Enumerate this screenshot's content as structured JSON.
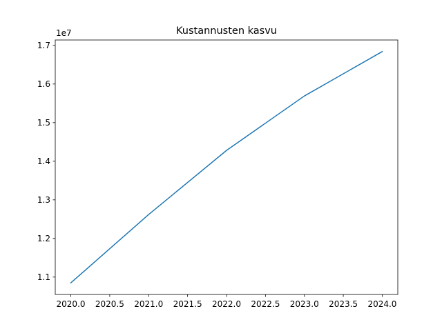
{
  "chart_data": {
    "type": "line",
    "title": "Kustannusten kasvu",
    "xlabel": "",
    "ylabel": "",
    "y_offset_label": "1e7",
    "x": [
      2020,
      2021,
      2022,
      2023,
      2024
    ],
    "series": [
      {
        "values": [
          10850000,
          12620000,
          14280000,
          15690000,
          16840000
        ],
        "color": "#1f77b4"
      }
    ],
    "xlim": [
      2019.8,
      2024.2
    ],
    "ylim": [
      10550000,
      17140000
    ],
    "x_ticks": [
      {
        "value": 2020.0,
        "label": "2020.0"
      },
      {
        "value": 2020.5,
        "label": "2020.5"
      },
      {
        "value": 2021.0,
        "label": "2021.0"
      },
      {
        "value": 2021.5,
        "label": "2021.5"
      },
      {
        "value": 2022.0,
        "label": "2022.0"
      },
      {
        "value": 2022.5,
        "label": "2022.5"
      },
      {
        "value": 2023.0,
        "label": "2023.0"
      },
      {
        "value": 2023.5,
        "label": "2023.5"
      },
      {
        "value": 2024.0,
        "label": "2024.0"
      }
    ],
    "y_ticks": [
      {
        "value": 11000000,
        "label": "1.1"
      },
      {
        "value": 12000000,
        "label": "1.2"
      },
      {
        "value": 13000000,
        "label": "1.3"
      },
      {
        "value": 14000000,
        "label": "1.4"
      },
      {
        "value": 15000000,
        "label": "1.5"
      },
      {
        "value": 16000000,
        "label": "1.6"
      },
      {
        "value": 17000000,
        "label": "1.7"
      }
    ],
    "grid": false,
    "legend": "none"
  }
}
